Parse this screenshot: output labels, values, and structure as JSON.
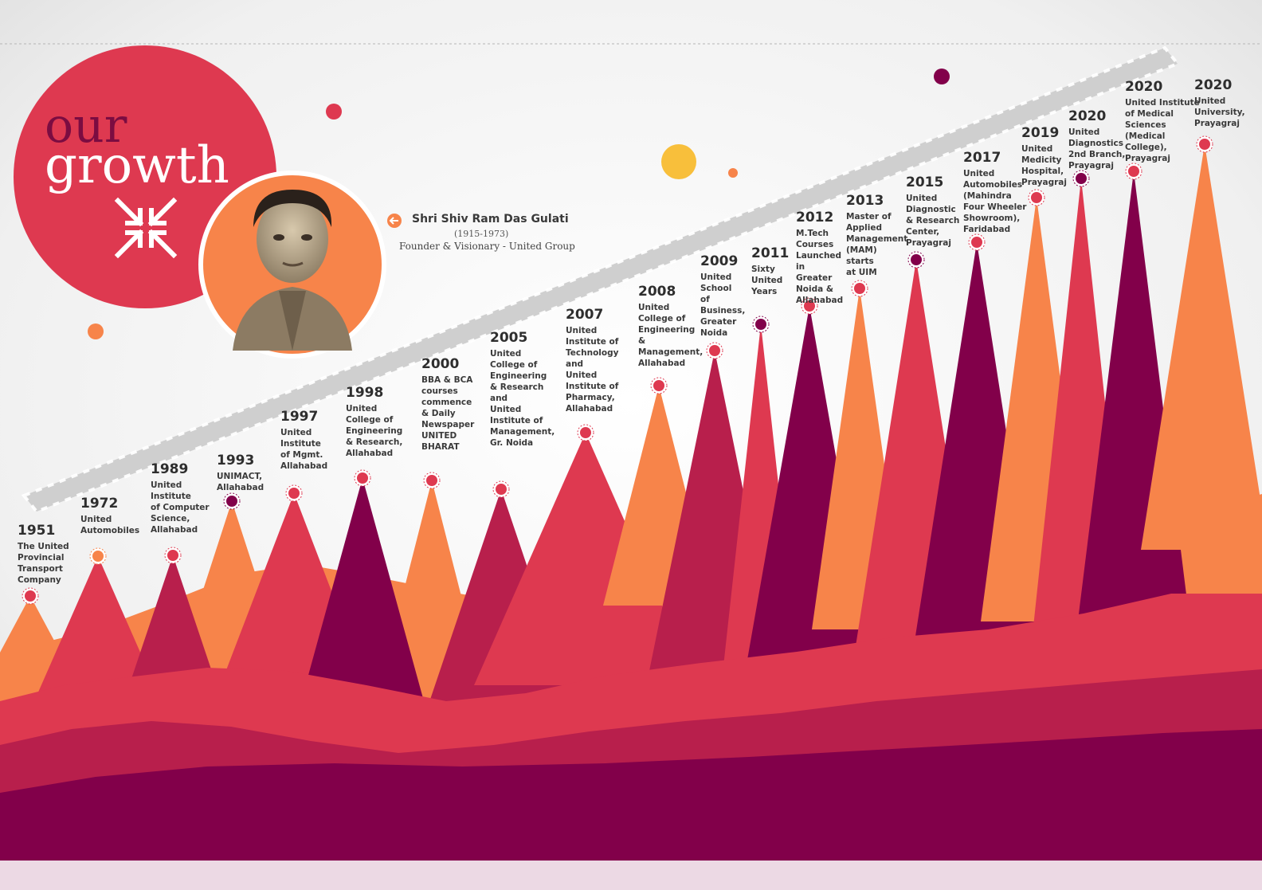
{
  "title": {
    "line1": "our",
    "line2": "growth"
  },
  "founder": {
    "name": "Shri Shiv Ram Das Gulati",
    "years": "(1915-1973)",
    "role": "Founder & Visionary - United Group"
  },
  "colors": {
    "crimson": "#de3950",
    "orange": "#f7844a",
    "rose": "#b81f4c",
    "plum": "#82004a",
    "sun": "#f8bf3b",
    "background": "#f1f1f1"
  },
  "milestones": [
    {
      "year": "1951",
      "text": "The United\nProvincial\nTransport\nCompany"
    },
    {
      "year": "1972",
      "text": "United\nAutomobiles"
    },
    {
      "year": "1989",
      "text": "United\nInstitute\nof Computer\nScience,\nAllahabad"
    },
    {
      "year": "1993",
      "text": "UNIMACT,\nAllahabad"
    },
    {
      "year": "1997",
      "text": "United\nInstitute\nof Mgmt.\nAllahabad"
    },
    {
      "year": "1998",
      "text": "United\nCollege of\nEngineering\n& Research,\nAllahabad"
    },
    {
      "year": "2000",
      "text": "BBA & BCA\ncourses\ncommence\n& Daily\nNewspaper\nUNITED\nBHARAT"
    },
    {
      "year": "2005",
      "text": "United\nCollege of\nEngineering\n& Research\nand\nUnited\nInstitute of\nManagement,\nGr. Noida"
    },
    {
      "year": "2007",
      "text": "United\nInstitute of\nTechnology\nand\nUnited\nInstitute of\nPharmacy,\nAllahabad"
    },
    {
      "year": "2008",
      "text": "United\nCollege of\nEngineering\n&\nManagement,\nAllahabad"
    },
    {
      "year": "2009",
      "text": "United\nSchool\nof\nBusiness,\nGreater\nNoida"
    },
    {
      "year": "2011",
      "text": "Sixty\nUnited\nYears"
    },
    {
      "year": "2012",
      "text": "M.Tech\nCourses\nLaunched\nin\nGreater\nNoida &\nAllahabad"
    },
    {
      "year": "2013",
      "text": "Master of\nApplied\nManagement\n(MAM)\nstarts\nat UIM"
    },
    {
      "year": "2015",
      "text": "United\nDiagnostic\n& Research\nCenter,\nPrayagraj"
    },
    {
      "year": "2017",
      "text": "United\nAutomobiles\n(Mahindra\nFour Wheeler\nShowroom),\nFaridabad"
    },
    {
      "year": "2019",
      "text": "United\nMedicity\nHospital,\nPrayagraj"
    },
    {
      "year": "2020",
      "text": "United\nDiagnostics\n2nd Branch,\nPrayagraj"
    },
    {
      "year": "2020",
      "text": "United Institute\nof Medical\nSciences\n(Medical\nCollege),\nPrayagraj"
    },
    {
      "year": "2020",
      "text": "United\nUniversity,\nPrayagraj"
    }
  ]
}
